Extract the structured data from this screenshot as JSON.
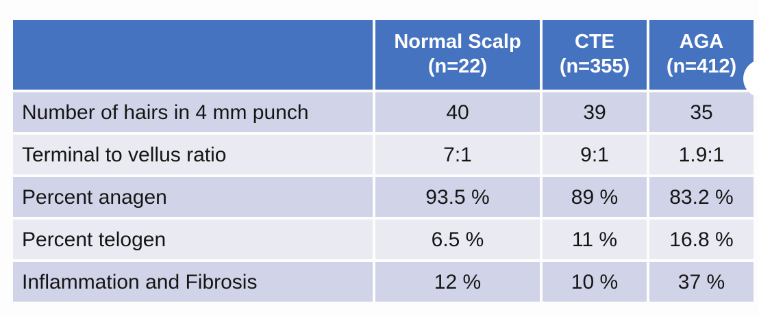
{
  "chart_data": {
    "type": "table",
    "corner_header": "",
    "columns": [
      {
        "label": "Normal Scalp",
        "n": "(n=22)"
      },
      {
        "label": "CTE",
        "n": "(n=355)"
      },
      {
        "label": "AGA",
        "n": "(n=412)"
      }
    ],
    "rows": [
      {
        "label": "Number of hairs in 4 mm punch",
        "values": [
          "40",
          "39",
          "35"
        ]
      },
      {
        "label": "Terminal to vellus ratio",
        "values": [
          "7:1",
          "9:1",
          "1.9:1"
        ]
      },
      {
        "label": "Percent anagen",
        "values": [
          "93.5 %",
          "89 %",
          "83.2 %"
        ]
      },
      {
        "label": "Percent telogen",
        "values": [
          "6.5 %",
          "11 %",
          "16.8 %"
        ]
      },
      {
        "label": "Inflammation and Fibrosis",
        "values": [
          "12 %",
          "10 %",
          "37 %"
        ]
      }
    ]
  },
  "colors": {
    "page_bg": "#fdfdfd",
    "header_bg": "#4573c0",
    "header_text": "#ffffff",
    "row_dark": "#d1d4e8",
    "row_light": "#e9eaf2",
    "body_text": "#151515",
    "grid": "#ffffff"
  }
}
